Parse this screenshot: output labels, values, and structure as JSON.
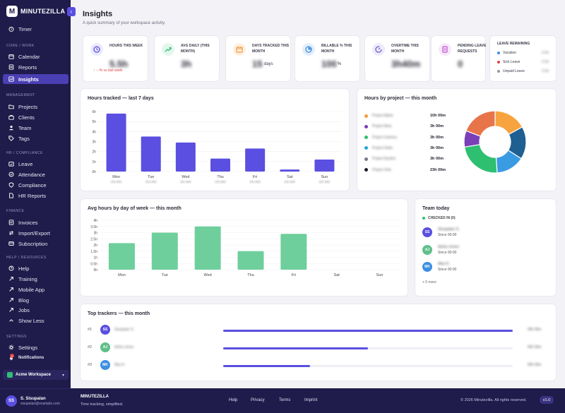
{
  "brand": {
    "name": "MINUTEZILLA"
  },
  "sidebar": {
    "timer": "Timer",
    "sections": {
      "core": "Core / Work",
      "management": "Management",
      "hr": "HR / Compliance",
      "finance": "Finance",
      "help": "Help / Resources",
      "settings": "Settings"
    },
    "core_items": [
      "Calendar",
      "Reports",
      "Insights"
    ],
    "management_items": [
      "Projects",
      "Clients",
      "Team",
      "Tags"
    ],
    "hr_items": [
      "Leave",
      "Attendance",
      "Compliance",
      "HR Reports"
    ],
    "finance_items": [
      "Invoices",
      "Import/Export",
      "Subscription"
    ],
    "help_items": [
      "Help",
      "Training",
      "Mobile App",
      "Blog",
      "Jobs",
      "Show Less"
    ],
    "settings_items": [
      "Settings",
      "Notifications"
    ],
    "notifications_count": "1",
    "workspace": "Acme Workspace",
    "user": {
      "initials": "SS",
      "name": "S. Sisupalan",
      "email": "sisupalan@example.com"
    }
  },
  "header": {
    "title": "Insights",
    "subtitle": "A quick summary of your workspace activity."
  },
  "kpis": [
    {
      "label": "Hours this week",
      "value": "5.5h",
      "unit": "",
      "trend": "↑ -.-% vs last week",
      "color": "#5a4fe0",
      "bg": "#ecebfc",
      "icon": "clock-icon"
    },
    {
      "label": "Avg daily (this month)",
      "value": "3h",
      "unit": "",
      "color": "#2fbf71",
      "bg": "#e4f7ec",
      "icon": "trend-up-icon"
    },
    {
      "label": "Days tracked this month",
      "value": "15",
      "unit": "days",
      "color": "#f39a3d",
      "bg": "#fdf0e1",
      "icon": "calendar-icon"
    },
    {
      "label": "Billable % this month",
      "value": "100",
      "unit": "%",
      "color": "#3d8fe0",
      "bg": "#e3eefb",
      "icon": "pie-icon"
    },
    {
      "label": "Overtime this month",
      "value": "3h40m",
      "unit": "",
      "color": "#6a5acd",
      "bg": "#eeebfa",
      "icon": "gauge-icon"
    },
    {
      "label": "Pending leave requests",
      "value": "0",
      "unit": "",
      "color": "#c04fcf",
      "bg": "#f7e8fa",
      "icon": "document-icon"
    }
  ],
  "leave": {
    "title": "Leave remaining",
    "rows": [
      {
        "label": "Vacation",
        "value": "0.0d",
        "color": "#3d8fe0"
      },
      {
        "label": "Sick Leave",
        "value": "0.0d",
        "color": "#e24646"
      },
      {
        "label": "Unpaid Leave",
        "value": "0.0d",
        "color": "#999999"
      }
    ]
  },
  "hours_chart": {
    "title": "Hours tracked — last 7 days"
  },
  "project_chart": {
    "title": "Hours by project — this month"
  },
  "dow_chart": {
    "title": "Avg hours by day of week — this month"
  },
  "chart_data": [
    {
      "type": "bar",
      "title": "Hours tracked — last 7 days",
      "categories": [
        "Mon",
        "Tue",
        "Wed",
        "Thu",
        "Fri",
        "Sat",
        "Sun"
      ],
      "sublabels": [
        "DD.MM",
        "DD.MM",
        "DD.MM",
        "DD.MM",
        "DD.MM",
        "DD.MM",
        "DD.MM"
      ],
      "values": [
        5.8,
        3.5,
        2.9,
        1.3,
        2.3,
        0.2,
        1.2
      ],
      "yticks": [
        "0h",
        "1h",
        "2h",
        "3h",
        "4h",
        "5h",
        "6h"
      ],
      "ylim": [
        0,
        6
      ],
      "color": "#5a4fe0"
    },
    {
      "type": "pie",
      "title": "Hours by project — this month",
      "labels": [
        "Project Alpha",
        "Project Beta",
        "Project Gamma",
        "Project Delta",
        "Project Epsilon",
        "Project Zeta"
      ],
      "display_values": [
        "10h 00m",
        "3h 00m",
        "3h 00m",
        "3h 00m",
        "3h 00m",
        "23h 00m"
      ],
      "values": [
        10,
        3,
        3,
        3,
        3,
        23
      ],
      "colors": [
        "#f39a3d",
        "#7b3fb8",
        "#2fbf71",
        "#1fa8e0",
        "#7a7a8a",
        "#1c1c28"
      ],
      "donut_slices": [
        {
          "value": 8,
          "color": "#f7a440"
        },
        {
          "value": 8,
          "color": "#1f5f91"
        },
        {
          "value": 7,
          "color": "#3a9be3"
        },
        {
          "value": 11,
          "color": "#2fbf71"
        },
        {
          "value": 4,
          "color": "#7b3fb8"
        },
        {
          "value": 9,
          "color": "#e8744a"
        }
      ]
    },
    {
      "type": "bar",
      "title": "Avg hours by day of week — this month",
      "categories": [
        "Mon",
        "Tue",
        "Wed",
        "Thu",
        "Fri",
        "Sat",
        "Sun"
      ],
      "values": [
        2.15,
        3.0,
        3.5,
        1.5,
        2.9,
        0,
        0
      ],
      "yticks": [
        "0h",
        "0.5h",
        "1h",
        "1.5h",
        "2h",
        "2.5h",
        "3h",
        "3.5h",
        "4h"
      ],
      "ylim": [
        0,
        4
      ],
      "color": "#6fcf9c"
    }
  ],
  "team": {
    "title": "Team today",
    "checked_in": "CHECKED IN (0)",
    "members": [
      {
        "initials": "SS",
        "name": "Sisupalan S.",
        "since": "Since 00:00",
        "color": "#5a4fe0"
      },
      {
        "initials": "AJ",
        "name": "Aisha Jones",
        "since": "Since 00:00",
        "color": "#5fbf8a"
      },
      {
        "initials": "MK",
        "name": "Max K.",
        "since": "Since 00:00",
        "color": "#3d8fe0"
      }
    ],
    "more": "+ 0 more"
  },
  "trackers": {
    "title": "Top trackers — this month",
    "rows": [
      {
        "rank": "#1",
        "initials": "SS",
        "name": "Sisupalan S.",
        "value": "00h 00m",
        "fill": 1.0,
        "color": "#5a4fe0"
      },
      {
        "rank": "#2",
        "initials": "AJ",
        "name": "Aisha Jones",
        "value": "00h 00m",
        "fill": 0.5,
        "color": "#5fbf8a"
      },
      {
        "rank": "#3",
        "initials": "MK",
        "name": "Max K.",
        "value": "00h 00m",
        "fill": 0.3,
        "color": "#3d8fe0"
      }
    ]
  },
  "footer": {
    "brand": "MINUTEZILLA",
    "tagline": "Time tracking, simplified.",
    "links": [
      "Help",
      "Privacy",
      "Terms",
      "Imprint"
    ],
    "copyright": "© 2026 Minutezilla. All rights reserved.",
    "version": "v1.0"
  }
}
